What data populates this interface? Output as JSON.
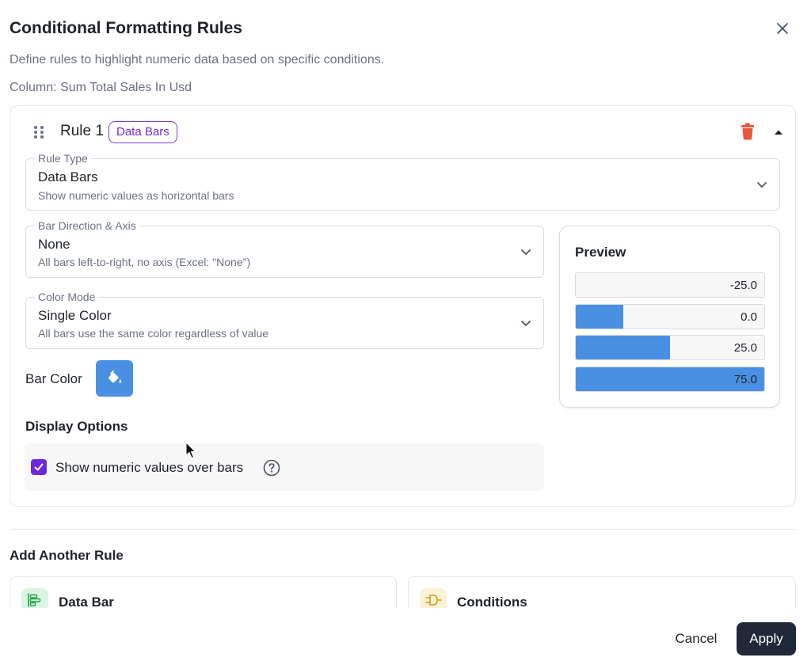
{
  "dialog": {
    "title": "Conditional Formatting Rules",
    "subtitle": "Define rules to highlight numeric data based on specific conditions.",
    "column_label": "Column: Sum Total Sales In Usd",
    "close_icon": "close-icon"
  },
  "rule": {
    "name": "Rule 1",
    "badge": "Data Bars",
    "rule_type": {
      "label": "Rule Type",
      "value": "Data Bars",
      "description": "Show numeric values as horizontal bars"
    },
    "bar_direction": {
      "label": "Bar Direction & Axis",
      "value": "None",
      "description": "All bars left-to-right, no axis (Excel: \"None\")"
    },
    "color_mode": {
      "label": "Color Mode",
      "value": "Single Color",
      "description": "All bars use the same color regardless of value"
    },
    "bar_color": {
      "label": "Bar Color",
      "color": "#4a90e2",
      "icon": "paint-bucket-icon"
    },
    "display_options": {
      "title": "Display Options",
      "show_values_label": "Show numeric values over bars",
      "show_values_checked": true
    },
    "preview": {
      "title": "Preview",
      "bars": [
        {
          "label": "-25.0",
          "fill": 0.0
        },
        {
          "label": "0.0",
          "fill": 0.25
        },
        {
          "label": "25.0",
          "fill": 0.5
        },
        {
          "label": "75.0",
          "fill": 1.0
        }
      ]
    }
  },
  "add_rule": {
    "title": "Add Another Rule",
    "options": [
      {
        "label": "Data Bar",
        "icon": "data-bar-icon",
        "accent": "#22a34a",
        "bg": "#dcf5e3"
      },
      {
        "label": "Conditions",
        "icon": "conditions-icon",
        "accent": "#d99a1a",
        "bg": "#fdf1d6"
      }
    ]
  },
  "footer": {
    "cancel_label": "Cancel",
    "apply_label": "Apply"
  },
  "colors": {
    "accent_purple": "#6d28d9",
    "delete_red": "#e8573d",
    "apply_dark": "#1f2937"
  }
}
